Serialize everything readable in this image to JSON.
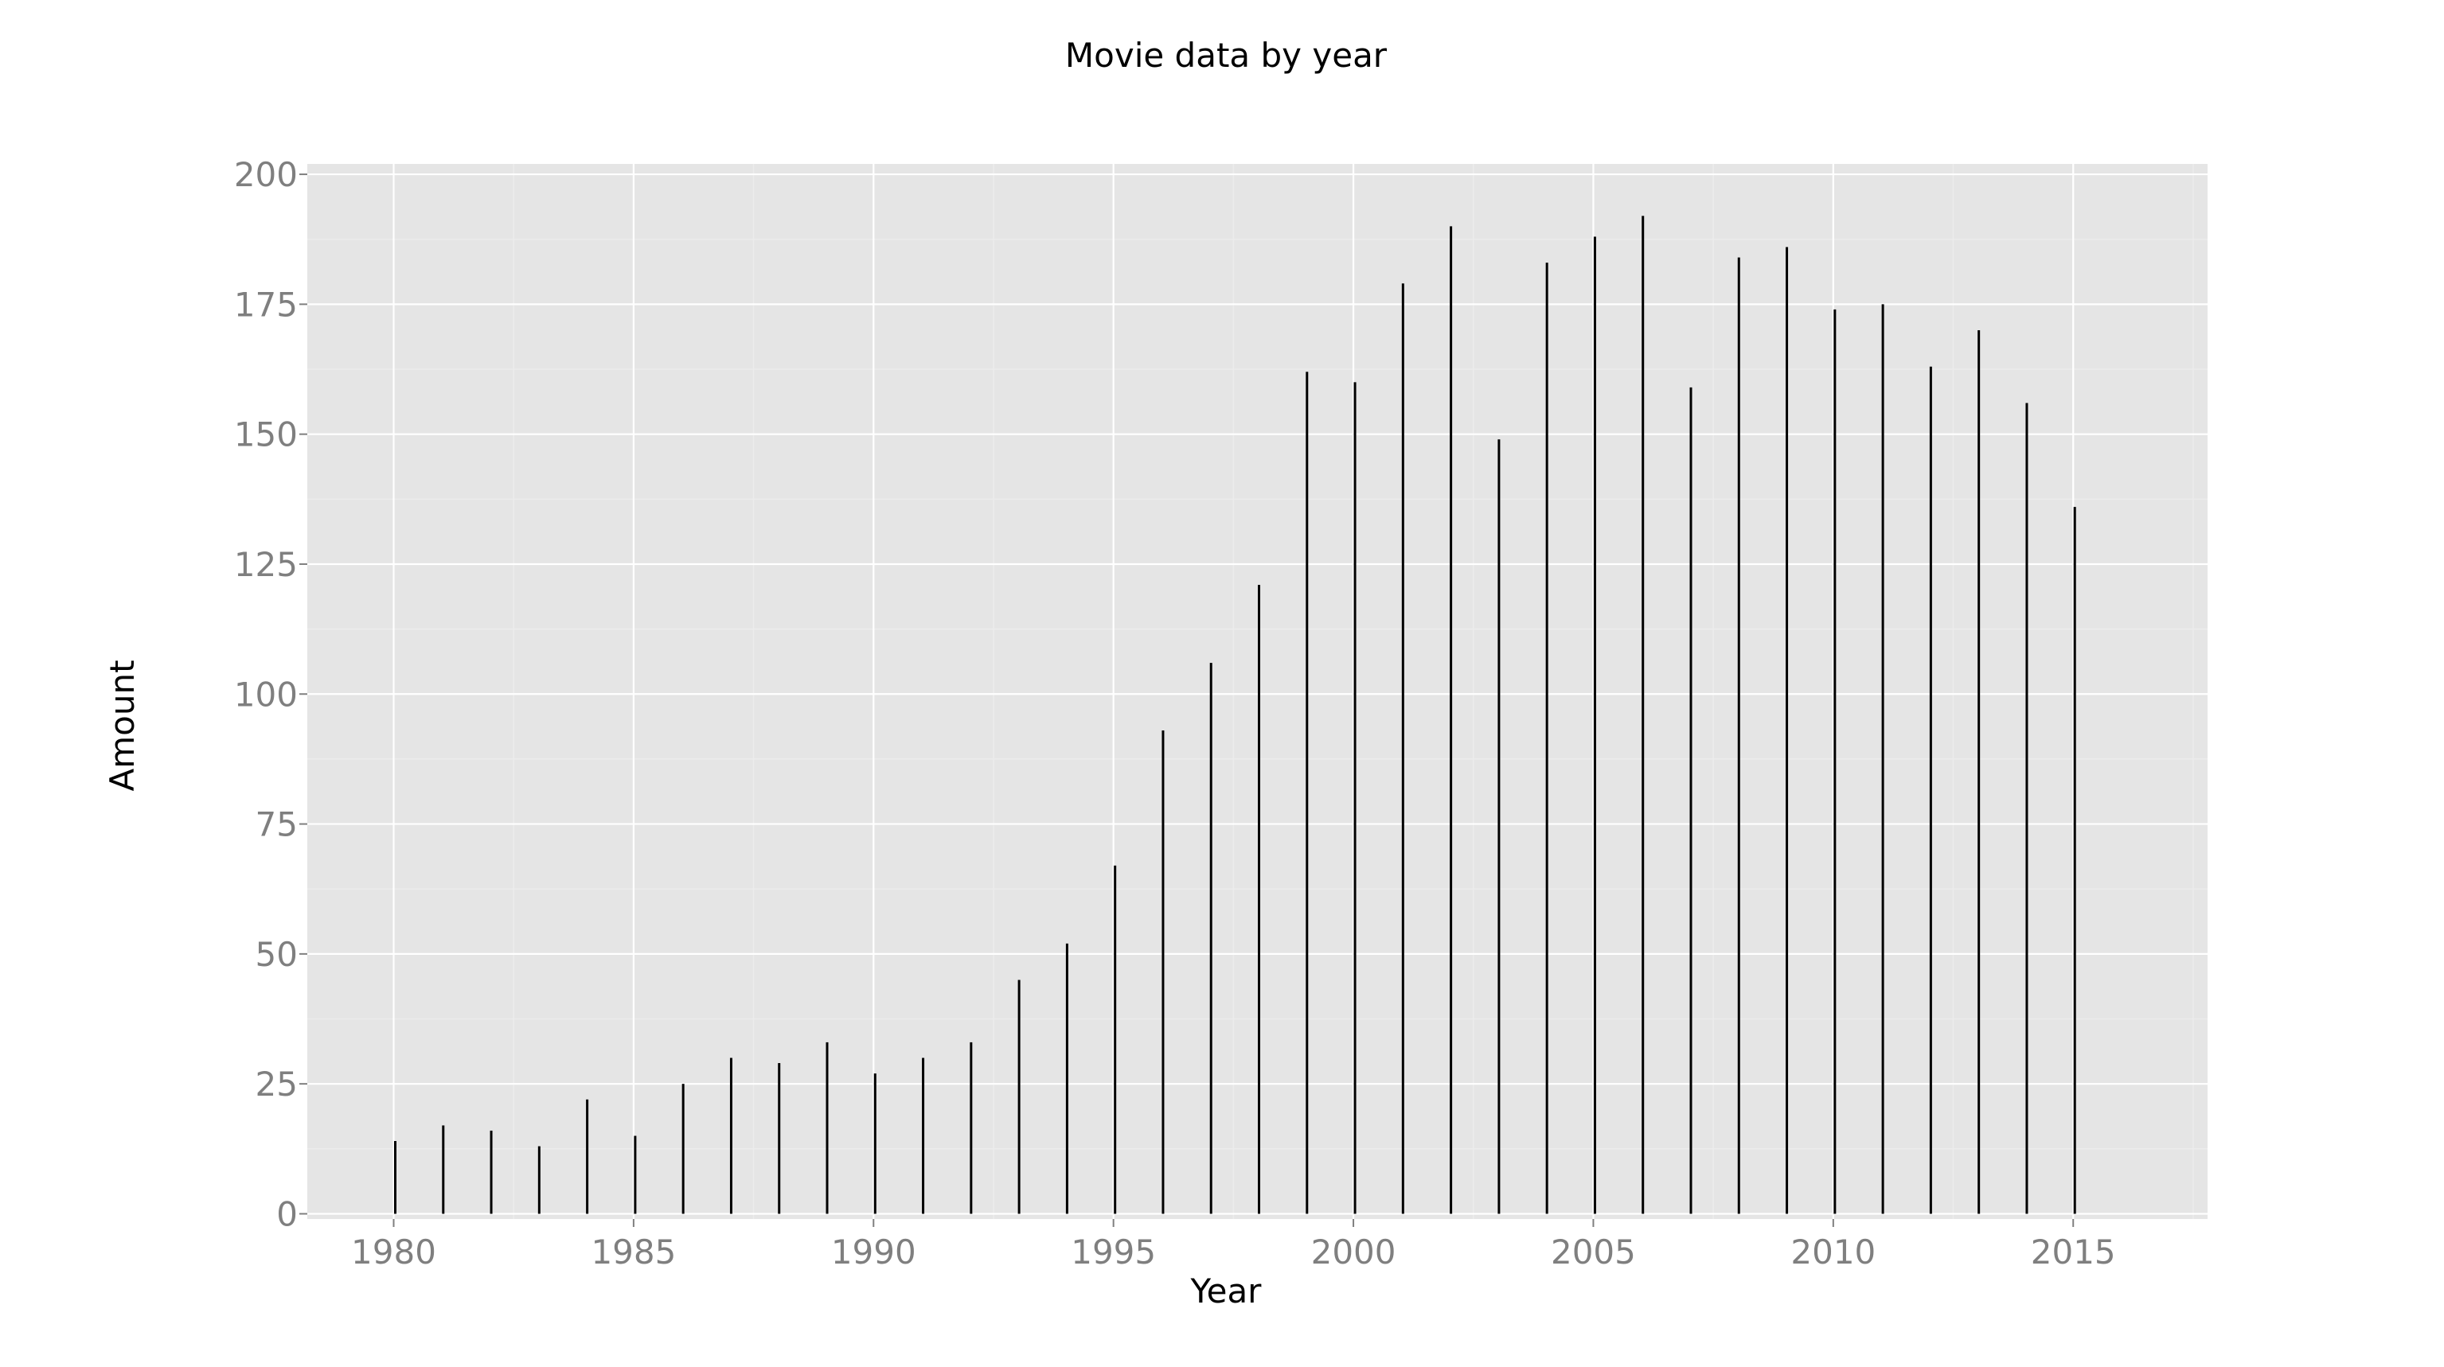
{
  "chart_data": {
    "type": "bar",
    "title": "Movie data by year",
    "xlabel": "Year",
    "ylabel": "Amount",
    "x": [
      1980,
      1981,
      1982,
      1983,
      1984,
      1985,
      1986,
      1987,
      1988,
      1989,
      1990,
      1991,
      1992,
      1993,
      1994,
      1995,
      1996,
      1997,
      1998,
      1999,
      2000,
      2001,
      2002,
      2003,
      2004,
      2005,
      2006,
      2007,
      2008,
      2009,
      2010,
      2011,
      2012,
      2013,
      2014,
      2015
    ],
    "values": [
      14,
      17,
      16,
      13,
      22,
      15,
      25,
      30,
      29,
      33,
      27,
      30,
      33,
      45,
      52,
      67,
      93,
      106,
      121,
      162,
      160,
      179,
      190,
      149,
      183,
      188,
      192,
      159,
      184,
      186,
      174,
      175,
      163,
      170,
      156,
      136
    ],
    "xlim": [
      1978.2,
      2017.8
    ],
    "ylim": [
      -1,
      202
    ],
    "xticks": [
      "1980",
      "1985",
      "1990",
      "1995",
      "2000",
      "2005",
      "2010",
      "2015"
    ],
    "yticks": [
      "0",
      "25",
      "50",
      "75",
      "100",
      "125",
      "150",
      "175",
      "200"
    ],
    "grid": true,
    "colors": {
      "panel": "#e5e5e5",
      "grid_major": "#ffffff",
      "grid_minor": "#ececec",
      "bar": "#000000",
      "tick_text": "#7f7f7f"
    }
  }
}
